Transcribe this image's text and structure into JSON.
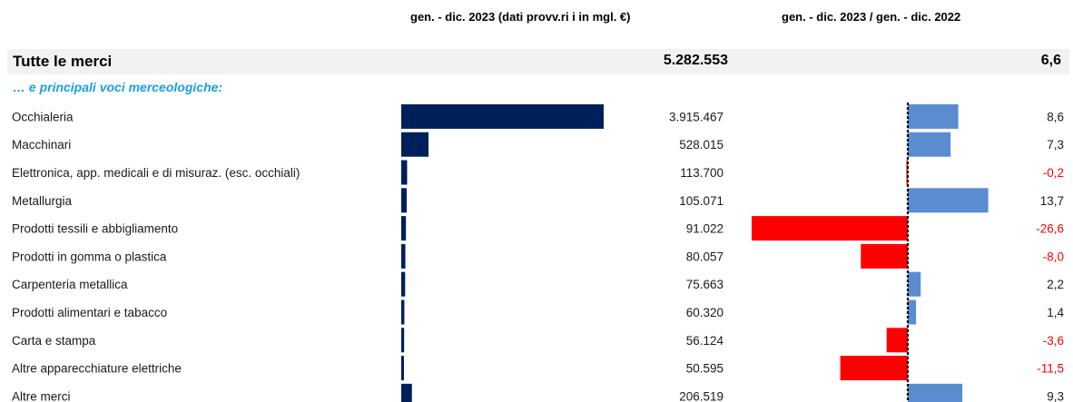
{
  "header": {
    "left": "gen. - dic. 2023 (dati provv.ri i in mgl. €)",
    "right": "gen. - dic. 2023 / gen. - dic. 2022"
  },
  "total": {
    "label": "Tutte le merci",
    "value": "5.282.553",
    "pct": "6,6"
  },
  "section_label": "… e principali voci merceologiche:",
  "colors": {
    "value_bar": "#00205b",
    "pos_bar": "#5b8ccf",
    "neg_bar": "#ff0000",
    "neg_text": "#ff0000",
    "section": "#1aa0e0"
  },
  "chart_data": [
    {
      "type": "bar",
      "orientation": "horizontal",
      "categories": [
        "Occhialeria",
        "Macchinari",
        "Elettronica, app. medicali e di misuraz. (esc. occhiali)",
        "Metallurgia",
        "Prodotti tessili e abbigliamento",
        "Prodotti in gomma o plastica",
        "Carpenteria metallica",
        "Prodotti alimentari e tabacco",
        "Carta e stampa",
        "Altre apparecchiature elettriche",
        "Altre merci"
      ],
      "values": [
        3915467,
        528015,
        113700,
        105071,
        91022,
        80057,
        75663,
        60320,
        56124,
        50595,
        206519
      ],
      "value_labels": [
        "3.915.467",
        "528.015",
        "113.700",
        "105.071",
        "91.022",
        "80.057",
        "75.663",
        "60.320",
        "56.124",
        "50.595",
        "206.519"
      ],
      "xlim": [
        0,
        3915467
      ]
    },
    {
      "type": "bar",
      "orientation": "horizontal",
      "categories": [
        "Occhialeria",
        "Macchinari",
        "Elettronica, app. medicali e di misuraz. (esc. occhiali)",
        "Metallurgia",
        "Prodotti tessili e abbigliamento",
        "Prodotti in gomma o plastica",
        "Carpenteria metallica",
        "Prodotti alimentari e tabacco",
        "Carta e stampa",
        "Altre apparecchiature elettriche",
        "Altre merci"
      ],
      "values": [
        8.6,
        7.3,
        -0.2,
        13.7,
        -26.6,
        -8.0,
        2.2,
        1.4,
        -3.6,
        -11.5,
        9.3
      ],
      "value_labels": [
        "8,6",
        "7,3",
        "-0,2",
        "13,7",
        "-26,6",
        "-8,0",
        "2,2",
        "1,4",
        "-3,6",
        "-11,5",
        "9,3"
      ],
      "xlim": [
        -26.6,
        13.7
      ]
    }
  ]
}
